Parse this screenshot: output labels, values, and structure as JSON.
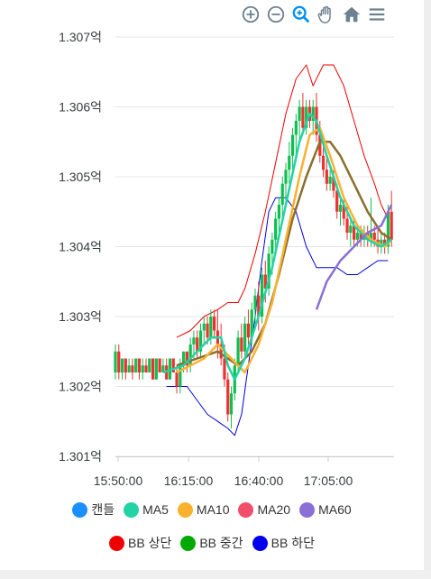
{
  "toolbar": {
    "icons": [
      "zoom-in-icon",
      "zoom-out-icon",
      "selection-zoom-icon",
      "pan-icon",
      "home-icon",
      "menu-icon"
    ]
  },
  "chart_data": {
    "type": "candlestick",
    "title": "",
    "xlabel": "",
    "ylabel": "",
    "y_ticks": [
      "1.307억",
      "1.306억",
      "1.305억",
      "1.304억",
      "1.303억",
      "1.302억",
      "1.301억"
    ],
    "y_tick_values": [
      1.307,
      1.306,
      1.305,
      1.304,
      1.303,
      1.302,
      1.301
    ],
    "x_ticks": [
      "15:50:00",
      "16:15:00",
      "16:40:00",
      "17:05:00"
    ],
    "ylim": [
      1.301,
      1.307
    ],
    "grid": true,
    "legend_position": "bottom",
    "colors": {
      "up": "#0fbf4f",
      "down": "#ef3030",
      "MA5": "#22d3a6",
      "MA10": "#fbb130",
      "MA20": "#f24d6a",
      "MA60": "#8b6fd6",
      "BB_upper": "#ee0000",
      "BB_mid": "#8a6f2e",
      "BB_lower": "#0000dd"
    },
    "legend": [
      {
        "label": "캔들",
        "color": "#1a90ff"
      },
      {
        "label": "MA5",
        "color": "#22d3a6"
      },
      {
        "label": "MA10",
        "color": "#fbb130"
      },
      {
        "label": "MA20",
        "color": "#f24d6a"
      },
      {
        "label": "MA60",
        "color": "#8b6fd6"
      },
      {
        "label": "BB 상단",
        "color": "#ee0000"
      },
      {
        "label": "BB 중간",
        "color": "#00aa00"
      },
      {
        "label": "BB 하단",
        "color": "#0000ee"
      }
    ],
    "x_range_minutes": [
      0,
      100
    ],
    "candles": [
      [
        0,
        1.3022,
        1.3026,
        1.3021,
        1.3025
      ],
      [
        1,
        1.3025,
        1.3026,
        1.3021,
        1.3022
      ],
      [
        2,
        1.3022,
        1.3024,
        1.3021,
        1.3024
      ],
      [
        3,
        1.3024,
        1.3024,
        1.3021,
        1.3022
      ],
      [
        4,
        1.3022,
        1.3024,
        1.3022,
        1.3023
      ],
      [
        5,
        1.3023,
        1.3024,
        1.3021,
        1.3022
      ],
      [
        6,
        1.3022,
        1.3024,
        1.3022,
        1.3024
      ],
      [
        7,
        1.3024,
        1.3024,
        1.3021,
        1.3022
      ],
      [
        8,
        1.3022,
        1.3024,
        1.3021,
        1.3023
      ],
      [
        9,
        1.3023,
        1.3024,
        1.3022,
        1.3022
      ],
      [
        10,
        1.3022,
        1.3024,
        1.3022,
        1.3024
      ],
      [
        11,
        1.3024,
        1.3024,
        1.3021,
        1.3021
      ],
      [
        12,
        1.3021,
        1.3024,
        1.3021,
        1.3024
      ],
      [
        13,
        1.3024,
        1.3024,
        1.3022,
        1.3022
      ],
      [
        14,
        1.3022,
        1.3024,
        1.3022,
        1.3023
      ],
      [
        15,
        1.3023,
        1.3024,
        1.3021,
        1.3021
      ],
      [
        16,
        1.3021,
        1.3024,
        1.3021,
        1.3024
      ],
      [
        17,
        1.3024,
        1.3024,
        1.3022,
        1.3022
      ],
      [
        18,
        1.3022,
        1.3023,
        1.3019,
        1.302
      ],
      [
        19,
        1.302,
        1.3024,
        1.3019,
        1.3023
      ],
      [
        20,
        1.3023,
        1.3025,
        1.3022,
        1.3025
      ],
      [
        21,
        1.3025,
        1.3025,
        1.3022,
        1.3023
      ],
      [
        22,
        1.3023,
        1.3027,
        1.3022,
        1.3026
      ],
      [
        23,
        1.3026,
        1.3028,
        1.3024,
        1.3027
      ],
      [
        24,
        1.3027,
        1.3028,
        1.3024,
        1.3025
      ],
      [
        25,
        1.3025,
        1.3029,
        1.3024,
        1.3028
      ],
      [
        26,
        1.3028,
        1.303,
        1.3026,
        1.3029
      ],
      [
        27,
        1.3029,
        1.303,
        1.3026,
        1.3027
      ],
      [
        28,
        1.3027,
        1.3031,
        1.3026,
        1.303
      ],
      [
        29,
        1.303,
        1.3031,
        1.3027,
        1.3028
      ],
      [
        30,
        1.3028,
        1.3031,
        1.3024,
        1.3026
      ],
      [
        31,
        1.3026,
        1.3029,
        1.3023,
        1.3024
      ],
      [
        32,
        1.3024,
        1.3026,
        1.302,
        1.3021
      ],
      [
        33,
        1.3021,
        1.3022,
        1.3015,
        1.3016
      ],
      [
        34,
        1.3016,
        1.302,
        1.3014,
        1.3019
      ],
      [
        35,
        1.3019,
        1.3024,
        1.3018,
        1.3023
      ],
      [
        36,
        1.3023,
        1.3028,
        1.3022,
        1.3027
      ],
      [
        37,
        1.3027,
        1.3029,
        1.3024,
        1.3025
      ],
      [
        38,
        1.3025,
        1.303,
        1.3024,
        1.3029
      ],
      [
        39,
        1.3029,
        1.3031,
        1.3026,
        1.3027
      ],
      [
        40,
        1.3027,
        1.3032,
        1.3026,
        1.3031
      ],
      [
        41,
        1.3031,
        1.3034,
        1.3029,
        1.3033
      ],
      [
        42,
        1.3033,
        1.3035,
        1.3028,
        1.303
      ],
      [
        43,
        1.303,
        1.3037,
        1.3029,
        1.3036
      ],
      [
        44,
        1.3036,
        1.3038,
        1.3032,
        1.3034
      ],
      [
        45,
        1.3034,
        1.304,
        1.3033,
        1.3039
      ],
      [
        46,
        1.3039,
        1.3042,
        1.3036,
        1.3041
      ],
      [
        47,
        1.3041,
        1.3045,
        1.3039,
        1.3044
      ],
      [
        48,
        1.3044,
        1.3047,
        1.3042,
        1.3046
      ],
      [
        49,
        1.3046,
        1.305,
        1.3044,
        1.3049
      ],
      [
        50,
        1.3049,
        1.3052,
        1.3046,
        1.3051
      ],
      [
        51,
        1.3051,
        1.3055,
        1.3049,
        1.3053
      ],
      [
        52,
        1.3053,
        1.3057,
        1.3051,
        1.3056
      ],
      [
        53,
        1.3056,
        1.3059,
        1.3053,
        1.3058
      ],
      [
        54,
        1.3058,
        1.3061,
        1.3055,
        1.306
      ],
      [
        55,
        1.306,
        1.3062,
        1.3056,
        1.3057
      ],
      [
        56,
        1.3057,
        1.3061,
        1.3056,
        1.306
      ],
      [
        57,
        1.306,
        1.3061,
        1.3057,
        1.3058
      ],
      [
        58,
        1.3058,
        1.3061,
        1.3056,
        1.306
      ],
      [
        59,
        1.306,
        1.3062,
        1.3055,
        1.3056
      ],
      [
        60,
        1.3056,
        1.3058,
        1.3052,
        1.3053
      ],
      [
        61,
        1.3053,
        1.3055,
        1.305,
        1.3051
      ],
      [
        62,
        1.3051,
        1.3053,
        1.3048,
        1.3049
      ],
      [
        63,
        1.3049,
        1.3051,
        1.3048,
        1.305
      ],
      [
        64,
        1.305,
        1.3051,
        1.3047,
        1.3048
      ],
      [
        65,
        1.3048,
        1.3049,
        1.3044,
        1.3045
      ],
      [
        66,
        1.3045,
        1.3047,
        1.3043,
        1.3046
      ],
      [
        67,
        1.3046,
        1.3047,
        1.3043,
        1.3044
      ],
      [
        68,
        1.3044,
        1.3046,
        1.3041,
        1.3042
      ],
      [
        69,
        1.3042,
        1.3044,
        1.304,
        1.3043
      ],
      [
        70,
        1.3043,
        1.3044,
        1.304,
        1.3041
      ],
      [
        71,
        1.3041,
        1.3043,
        1.304,
        1.3042
      ],
      [
        72,
        1.3042,
        1.3043,
        1.304,
        1.3041
      ],
      [
        73,
        1.3041,
        1.3043,
        1.304,
        1.3042
      ],
      [
        74,
        1.3042,
        1.3043,
        1.304,
        1.3041
      ],
      [
        75,
        1.3041,
        1.3047,
        1.304,
        1.3042
      ],
      [
        76,
        1.3042,
        1.3043,
        1.304,
        1.3041
      ],
      [
        77,
        1.3041,
        1.3043,
        1.3039,
        1.304
      ],
      [
        78,
        1.304,
        1.3042,
        1.3039,
        1.3041
      ],
      [
        79,
        1.3041,
        1.3042,
        1.3039,
        1.304
      ],
      [
        80,
        1.304,
        1.3046,
        1.3039,
        1.3045
      ],
      [
        81,
        1.3045,
        1.3048,
        1.304,
        1.3041
      ]
    ],
    "MA5": [
      [
        14,
        1.3022
      ],
      [
        20,
        1.3023
      ],
      [
        24,
        1.3025
      ],
      [
        28,
        1.3027
      ],
      [
        31,
        1.3027
      ],
      [
        33,
        1.3023
      ],
      [
        35,
        1.3021
      ],
      [
        38,
        1.3024
      ],
      [
        42,
        1.303
      ],
      [
        46,
        1.3037
      ],
      [
        50,
        1.3046
      ],
      [
        54,
        1.3055
      ],
      [
        57,
        1.3059
      ],
      [
        59,
        1.3058
      ],
      [
        62,
        1.3053
      ],
      [
        66,
        1.3047
      ],
      [
        70,
        1.3043
      ],
      [
        74,
        1.3041
      ],
      [
        78,
        1.304
      ],
      [
        81,
        1.3041
      ]
    ],
    "MA10": [
      [
        18,
        1.3022
      ],
      [
        22,
        1.3023
      ],
      [
        26,
        1.3024
      ],
      [
        30,
        1.3026
      ],
      [
        34,
        1.3024
      ],
      [
        38,
        1.3022
      ],
      [
        42,
        1.3026
      ],
      [
        46,
        1.3032
      ],
      [
        50,
        1.3041
      ],
      [
        54,
        1.305
      ],
      [
        57,
        1.3056
      ],
      [
        60,
        1.3057
      ],
      [
        63,
        1.3053
      ],
      [
        67,
        1.3047
      ],
      [
        71,
        1.3043
      ],
      [
        75,
        1.3041
      ],
      [
        79,
        1.304
      ],
      [
        81,
        1.3041
      ]
    ],
    "BB_mid": [
      [
        18,
        1.3023
      ],
      [
        24,
        1.3024
      ],
      [
        30,
        1.3025
      ],
      [
        36,
        1.3023
      ],
      [
        40,
        1.3025
      ],
      [
        44,
        1.3029
      ],
      [
        48,
        1.3036
      ],
      [
        52,
        1.3044
      ],
      [
        56,
        1.305
      ],
      [
        60,
        1.3055
      ],
      [
        63,
        1.3055
      ],
      [
        66,
        1.3053
      ],
      [
        70,
        1.3049
      ],
      [
        74,
        1.3045
      ],
      [
        78,
        1.3042
      ],
      [
        81,
        1.3041
      ]
    ],
    "MA60": [
      [
        59,
        1.3031
      ],
      [
        62,
        1.3035
      ],
      [
        66,
        1.3038
      ],
      [
        70,
        1.304
      ],
      [
        74,
        1.3042
      ],
      [
        78,
        1.3043
      ],
      [
        81,
        1.3046
      ]
    ],
    "BB_upper": [
      [
        18,
        1.3027
      ],
      [
        22,
        1.3028
      ],
      [
        26,
        1.303
      ],
      [
        30,
        1.3031
      ],
      [
        33,
        1.3032
      ],
      [
        36,
        1.3032
      ],
      [
        38,
        1.3034
      ],
      [
        41,
        1.3039
      ],
      [
        44,
        1.3045
      ],
      [
        47,
        1.3052
      ],
      [
        50,
        1.3059
      ],
      [
        53,
        1.3064
      ],
      [
        56,
        1.3066
      ],
      [
        58,
        1.3063
      ],
      [
        61,
        1.3066
      ],
      [
        64,
        1.3066
      ],
      [
        67,
        1.3063
      ],
      [
        70,
        1.3058
      ],
      [
        73,
        1.3053
      ],
      [
        76,
        1.3049
      ],
      [
        78,
        1.3046
      ],
      [
        80,
        1.3044
      ]
    ],
    "BB_lower": [
      [
        15,
        1.302
      ],
      [
        18,
        1.302
      ],
      [
        21,
        1.302
      ],
      [
        24,
        1.3018
      ],
      [
        27,
        1.3016
      ],
      [
        30,
        1.3015
      ],
      [
        33,
        1.3014
      ],
      [
        35,
        1.3013
      ],
      [
        37,
        1.3016
      ],
      [
        39,
        1.3023
      ],
      [
        41,
        1.303
      ],
      [
        43,
        1.3038
      ],
      [
        45,
        1.3045
      ],
      [
        47,
        1.3047
      ],
      [
        50,
        1.3047
      ],
      [
        53,
        1.3045
      ],
      [
        56,
        1.304
      ],
      [
        59,
        1.3037
      ],
      [
        62,
        1.3037
      ],
      [
        65,
        1.3037
      ],
      [
        68,
        1.3036
      ],
      [
        71,
        1.3036
      ],
      [
        74,
        1.3037
      ],
      [
        77,
        1.3038
      ],
      [
        80,
        1.3038
      ]
    ]
  }
}
